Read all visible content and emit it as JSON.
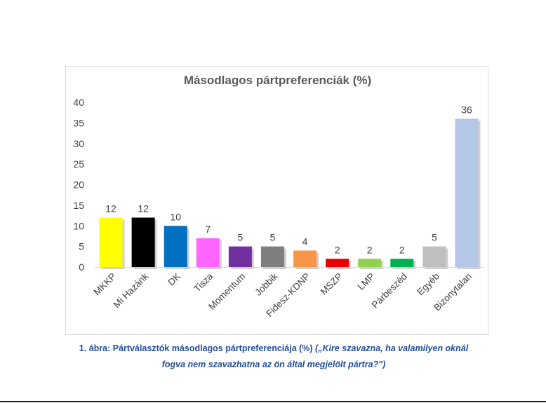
{
  "chart_data": {
    "type": "bar",
    "title": "Másodlagos pártpreferenciák (%)",
    "categories": [
      "MKKP",
      "Mi Hazánk",
      "DK",
      "Tisza",
      "Momentum",
      "Jobbik",
      "Fidesz-KDNP",
      "MSZP",
      "LMP",
      "Párbeszéd",
      "Egyéb",
      "Bizonytalan"
    ],
    "values": [
      12,
      12,
      10,
      7,
      5,
      5,
      4,
      2,
      2,
      2,
      5,
      36
    ],
    "colors": [
      "#ffff00",
      "#000000",
      "#0070c0",
      "#ff66ff",
      "#7030a0",
      "#7f7f7f",
      "#f79646",
      "#e60000",
      "#92d050",
      "#00b050",
      "#bfbfbf",
      "#b4c7e7"
    ],
    "ylim": [
      0,
      40
    ],
    "yticks": [
      0,
      5,
      10,
      15,
      20,
      25,
      30,
      35,
      40
    ],
    "xlabel": "",
    "ylabel": "",
    "grid": false,
    "legend": "none"
  },
  "caption": {
    "label": "1. ábra: Pártválasztók másodlagos pártpreferenciája (%)",
    "question_line1": "(„Kire szavazna, ha valamilyen oknál",
    "question_line2": "fogva nem szavazhatna az ön által megjelölt pártra?\")"
  }
}
